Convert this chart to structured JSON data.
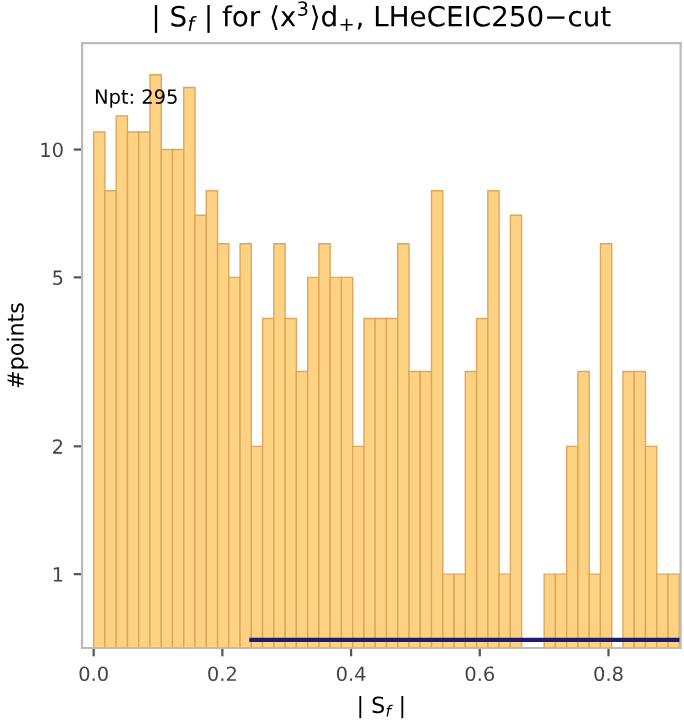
{
  "chart_data": {
    "type": "histogram",
    "title": "| S$_{f}$ | for ⟨x$^{3}$⟩d$_{+}$, LHeCEIC250−cut",
    "xlabel": "| S$_{f}$ |",
    "ylabel": "#points",
    "annotations": [
      "Npt: 295"
    ],
    "bins": [
      0,
      0.0175,
      0.035,
      0.0525,
      0.07,
      0.0875,
      0.105,
      0.1225,
      0.14,
      0.1575,
      0.175,
      0.1925,
      0.21,
      0.2275,
      0.245,
      0.2625,
      0.28,
      0.2975,
      0.315,
      0.3325,
      0.35,
      0.3675,
      0.385,
      0.4025,
      0.42,
      0.4375,
      0.455,
      0.4725,
      0.49,
      0.5075,
      0.525,
      0.5425,
      0.56,
      0.5775,
      0.595,
      0.6125,
      0.63,
      0.6475,
      0.665,
      0.6825,
      0.7,
      0.7175,
      0.735,
      0.7525,
      0.77,
      0.7875,
      0.805,
      0.8225,
      0.84,
      0.8575,
      0.875,
      0.8925,
      0.91
    ],
    "values": [
      11,
      8,
      12,
      11,
      11,
      15,
      10,
      10,
      14,
      7,
      8,
      6,
      5,
      6,
      2,
      4,
      6,
      4,
      3,
      5,
      6,
      5,
      5,
      2,
      4,
      4,
      4,
      6,
      3,
      3,
      8,
      1,
      1,
      3,
      4,
      8,
      1,
      7,
      null,
      null,
      1,
      1,
      2,
      3,
      1,
      6,
      null,
      3,
      3,
      2,
      1,
      1
    ],
    "color": "#fdd283",
    "series": [
      {
        "type": "line",
        "x": [
          0.245,
          0.91
        ],
        "values": [
          0.7,
          0.7
        ],
        "color": "#1c1c78"
      }
    ],
    "log": true,
    "xlim": [
      -0.018,
      0.912
    ],
    "ylim": [
      0.67,
      17.8
    ],
    "xticks": [
      {
        "value": 0,
        "label": "0.0"
      },
      0.2,
      0.4,
      0.6,
      0.8
    ],
    "yticks": [
      1,
      2,
      5,
      10
    ],
    "grid": false,
    "legend": false
  }
}
